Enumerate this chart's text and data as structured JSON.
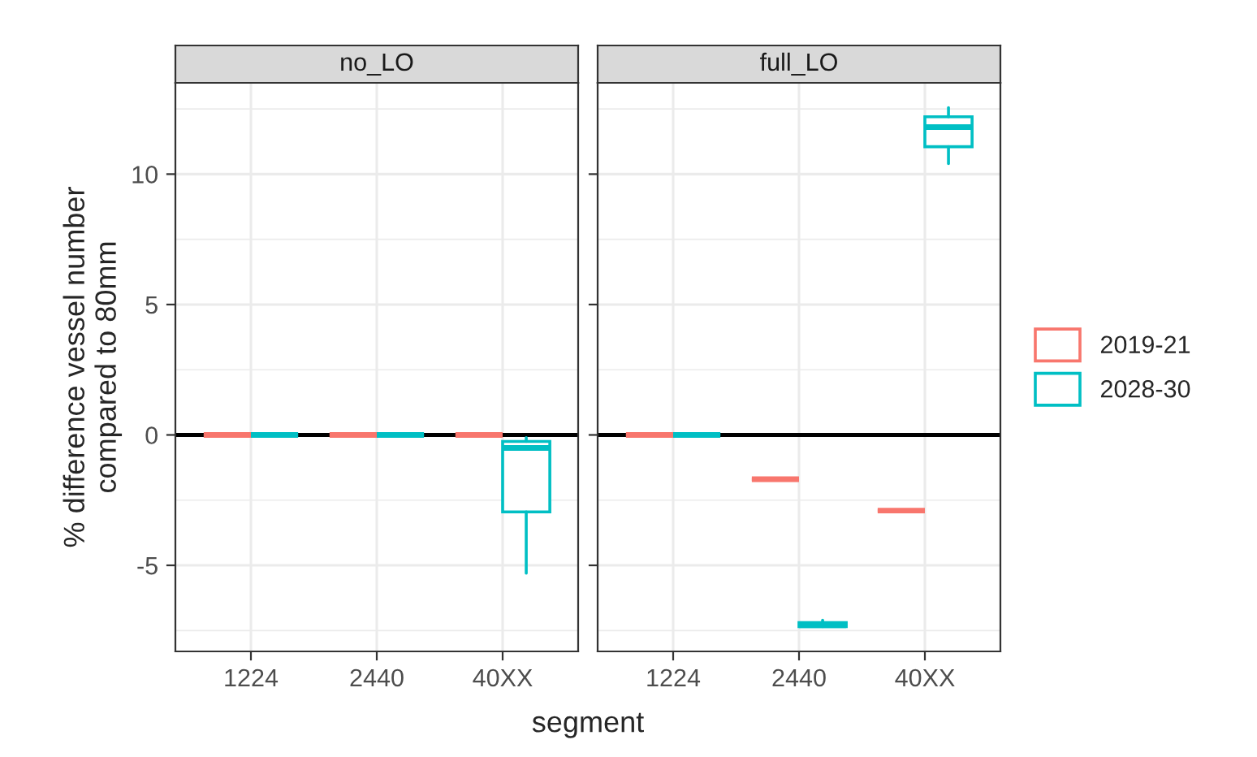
{
  "chart_data": [
    {
      "type": "box",
      "title": "no_LO",
      "ylabel": "% difference vessel number\ncompared to 80mm",
      "xlabel": "segment",
      "legend": "right",
      "categories": [
        "1224",
        "2440",
        "40XX"
      ],
      "ylim": [
        -8.3,
        13.5
      ],
      "yticks": [
        -5,
        0,
        5,
        10
      ],
      "grid": true,
      "ref_lines": [
        {
          "axis": "y",
          "value": 0,
          "color": "#000000"
        }
      ],
      "series": [
        {
          "name": "2019-21",
          "color": "#f8766d",
          "boxes": [
            {
              "low": 0,
              "q1": 0,
              "median": 0,
              "q3": 0,
              "high": 0
            },
            {
              "low": 0,
              "q1": 0,
              "median": 0,
              "q3": 0,
              "high": 0
            },
            {
              "low": 0,
              "q1": 0,
              "median": 0,
              "q3": 0,
              "high": 0
            }
          ]
        },
        {
          "name": "2028-30",
          "color": "#00bfc4",
          "boxes": [
            {
              "low": 0,
              "q1": 0,
              "median": 0,
              "q3": 0,
              "high": 0
            },
            {
              "low": 0,
              "q1": 0,
              "median": 0,
              "q3": 0,
              "high": 0
            },
            {
              "low": -5.3,
              "q1": -2.95,
              "median": -0.5,
              "q3": -0.25,
              "high": -0.1
            }
          ]
        }
      ]
    },
    {
      "type": "box",
      "title": "full_LO",
      "categories": [
        "1224",
        "2440",
        "40XX"
      ],
      "ylim": [
        -8.3,
        13.5
      ],
      "yticks": [
        -5,
        0,
        5,
        10
      ],
      "tick_labels": "x",
      "grid": true,
      "ref_lines": [
        {
          "axis": "y",
          "value": 0,
          "color": "#000000"
        }
      ],
      "series": [
        {
          "color": "#f8766d",
          "boxes": [
            {
              "low": 0,
              "q1": 0,
              "median": 0,
              "q3": 0,
              "high": 0
            },
            {
              "low": -1.7,
              "q1": -1.7,
              "median": -1.7,
              "q3": -1.7,
              "high": -1.7
            },
            {
              "low": -2.9,
              "q1": -2.9,
              "median": -2.9,
              "q3": -2.9,
              "high": -2.9
            }
          ]
        },
        {
          "color": "#00bfc4",
          "boxes": [
            {
              "low": 0,
              "q1": 0,
              "median": 0,
              "q3": 0,
              "high": 0
            },
            {
              "low": -7.35,
              "q1": -7.35,
              "median": -7.3,
              "q3": -7.2,
              "high": -7.1
            },
            {
              "low": 10.4,
              "q1": 11.05,
              "median": 11.8,
              "q3": 12.2,
              "high": 12.55
            }
          ]
        }
      ]
    }
  ]
}
